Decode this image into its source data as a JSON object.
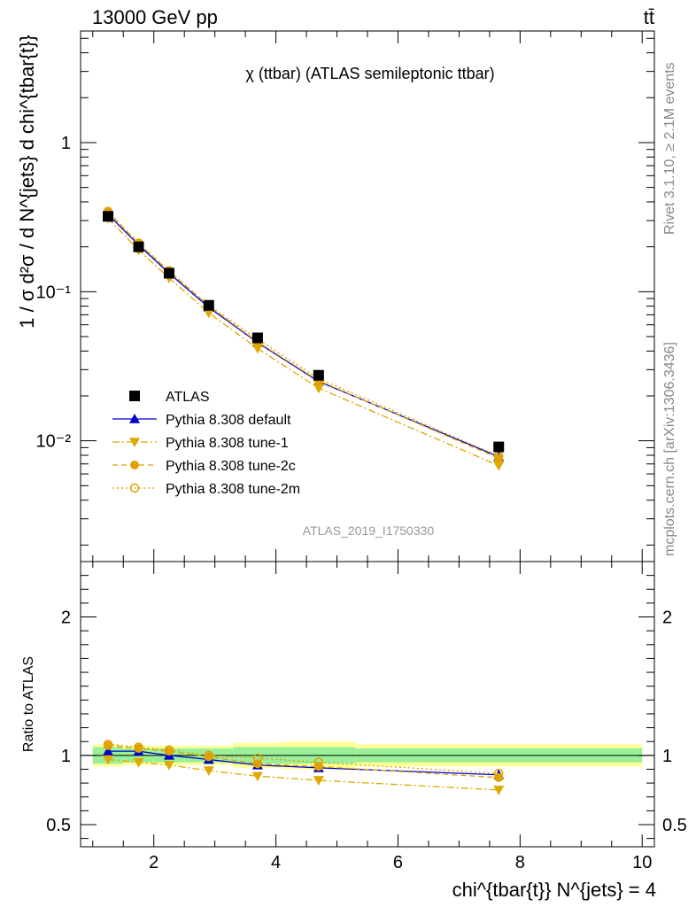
{
  "header": {
    "energy": "13000 GeV pp",
    "process": "tt̄"
  },
  "side": {
    "rivet": "Rivet 3.1.10, ≥ 2.1M events",
    "site": "mcplots.cern.ch [arXiv:1306.3436]"
  },
  "chart_data": {
    "type": "line",
    "title": "χ (ttbar) (ATLAS semileptonic ttbar)",
    "analysis_id": "ATLAS_2019_I1750330",
    "xlabel": "chi^{tbar{t}} N^{jets} = 4",
    "ylabel": "1 / σ d²σ / d N^{jets} d chi^{tbar{t}}",
    "ratio_ylabel": "Ratio to ATLAS",
    "xlim": [
      0.8,
      10.2
    ],
    "ylim": [
      0.00155,
      5.6
    ],
    "ylog": true,
    "ratio_ylim": [
      0.34,
      2.4
    ],
    "x_ticks": [
      2,
      4,
      6,
      8,
      10
    ],
    "y_ticks": [
      {
        "value": 1,
        "label": "1"
      },
      {
        "value": 0.1,
        "label": "10⁻¹"
      },
      {
        "value": 0.01,
        "label": "10⁻²"
      }
    ],
    "ratio_ticks": [
      {
        "value": 0.5,
        "label": "0.5"
      },
      {
        "value": 1,
        "label": "1"
      },
      {
        "value": 2,
        "label": "2"
      }
    ],
    "legend_position": "lower-left",
    "bins": [
      {
        "lo": 1.0,
        "hi": 1.5
      },
      {
        "lo": 1.5,
        "hi": 2.0
      },
      {
        "lo": 2.0,
        "hi": 2.5
      },
      {
        "lo": 2.5,
        "hi": 3.3
      },
      {
        "lo": 3.3,
        "hi": 4.1
      },
      {
        "lo": 4.1,
        "hi": 5.3
      },
      {
        "lo": 5.3,
        "hi": 10.0
      }
    ],
    "x": [
      1.25,
      1.75,
      2.25,
      2.9,
      3.7,
      4.7,
      7.65
    ],
    "data": {
      "name": "ATLAS",
      "color": "#000000",
      "values": [
        0.32,
        0.2,
        0.133,
        0.081,
        0.049,
        0.0275,
        0.0091
      ],
      "band_inner": [
        0.06,
        0.05,
        0.05,
        0.05,
        0.06,
        0.06,
        0.05
      ],
      "band_outer": [
        0.08,
        0.07,
        0.07,
        0.07,
        0.09,
        0.1,
        0.08
      ]
    },
    "series": [
      {
        "name": "Pythia 8.308 default",
        "color": "#0000cc",
        "marker": "triangle-up",
        "dash": "",
        "ratio": [
          1.03,
          1.03,
          1.0,
          0.97,
          0.93,
          0.91,
          0.86
        ]
      },
      {
        "name": "Pythia 8.308 tune-1",
        "color": "#e0a800",
        "marker": "triangle-down",
        "dash": "8,3,2,3",
        "ratio": [
          0.97,
          0.95,
          0.93,
          0.89,
          0.85,
          0.82,
          0.75
        ]
      },
      {
        "name": "Pythia 8.308 tune-2c",
        "color": "#e0a000",
        "marker": "circle-filled",
        "dash": "6,4",
        "ratio": [
          1.07,
          1.05,
          1.03,
          0.99,
          0.94,
          0.92,
          0.84
        ]
      },
      {
        "name": "Pythia 8.308 tune-2m",
        "color": "#e0a000",
        "marker": "circle-open",
        "dash": "2,3",
        "ratio": [
          1.08,
          1.06,
          1.04,
          1.0,
          0.98,
          0.95,
          0.87
        ]
      }
    ]
  }
}
